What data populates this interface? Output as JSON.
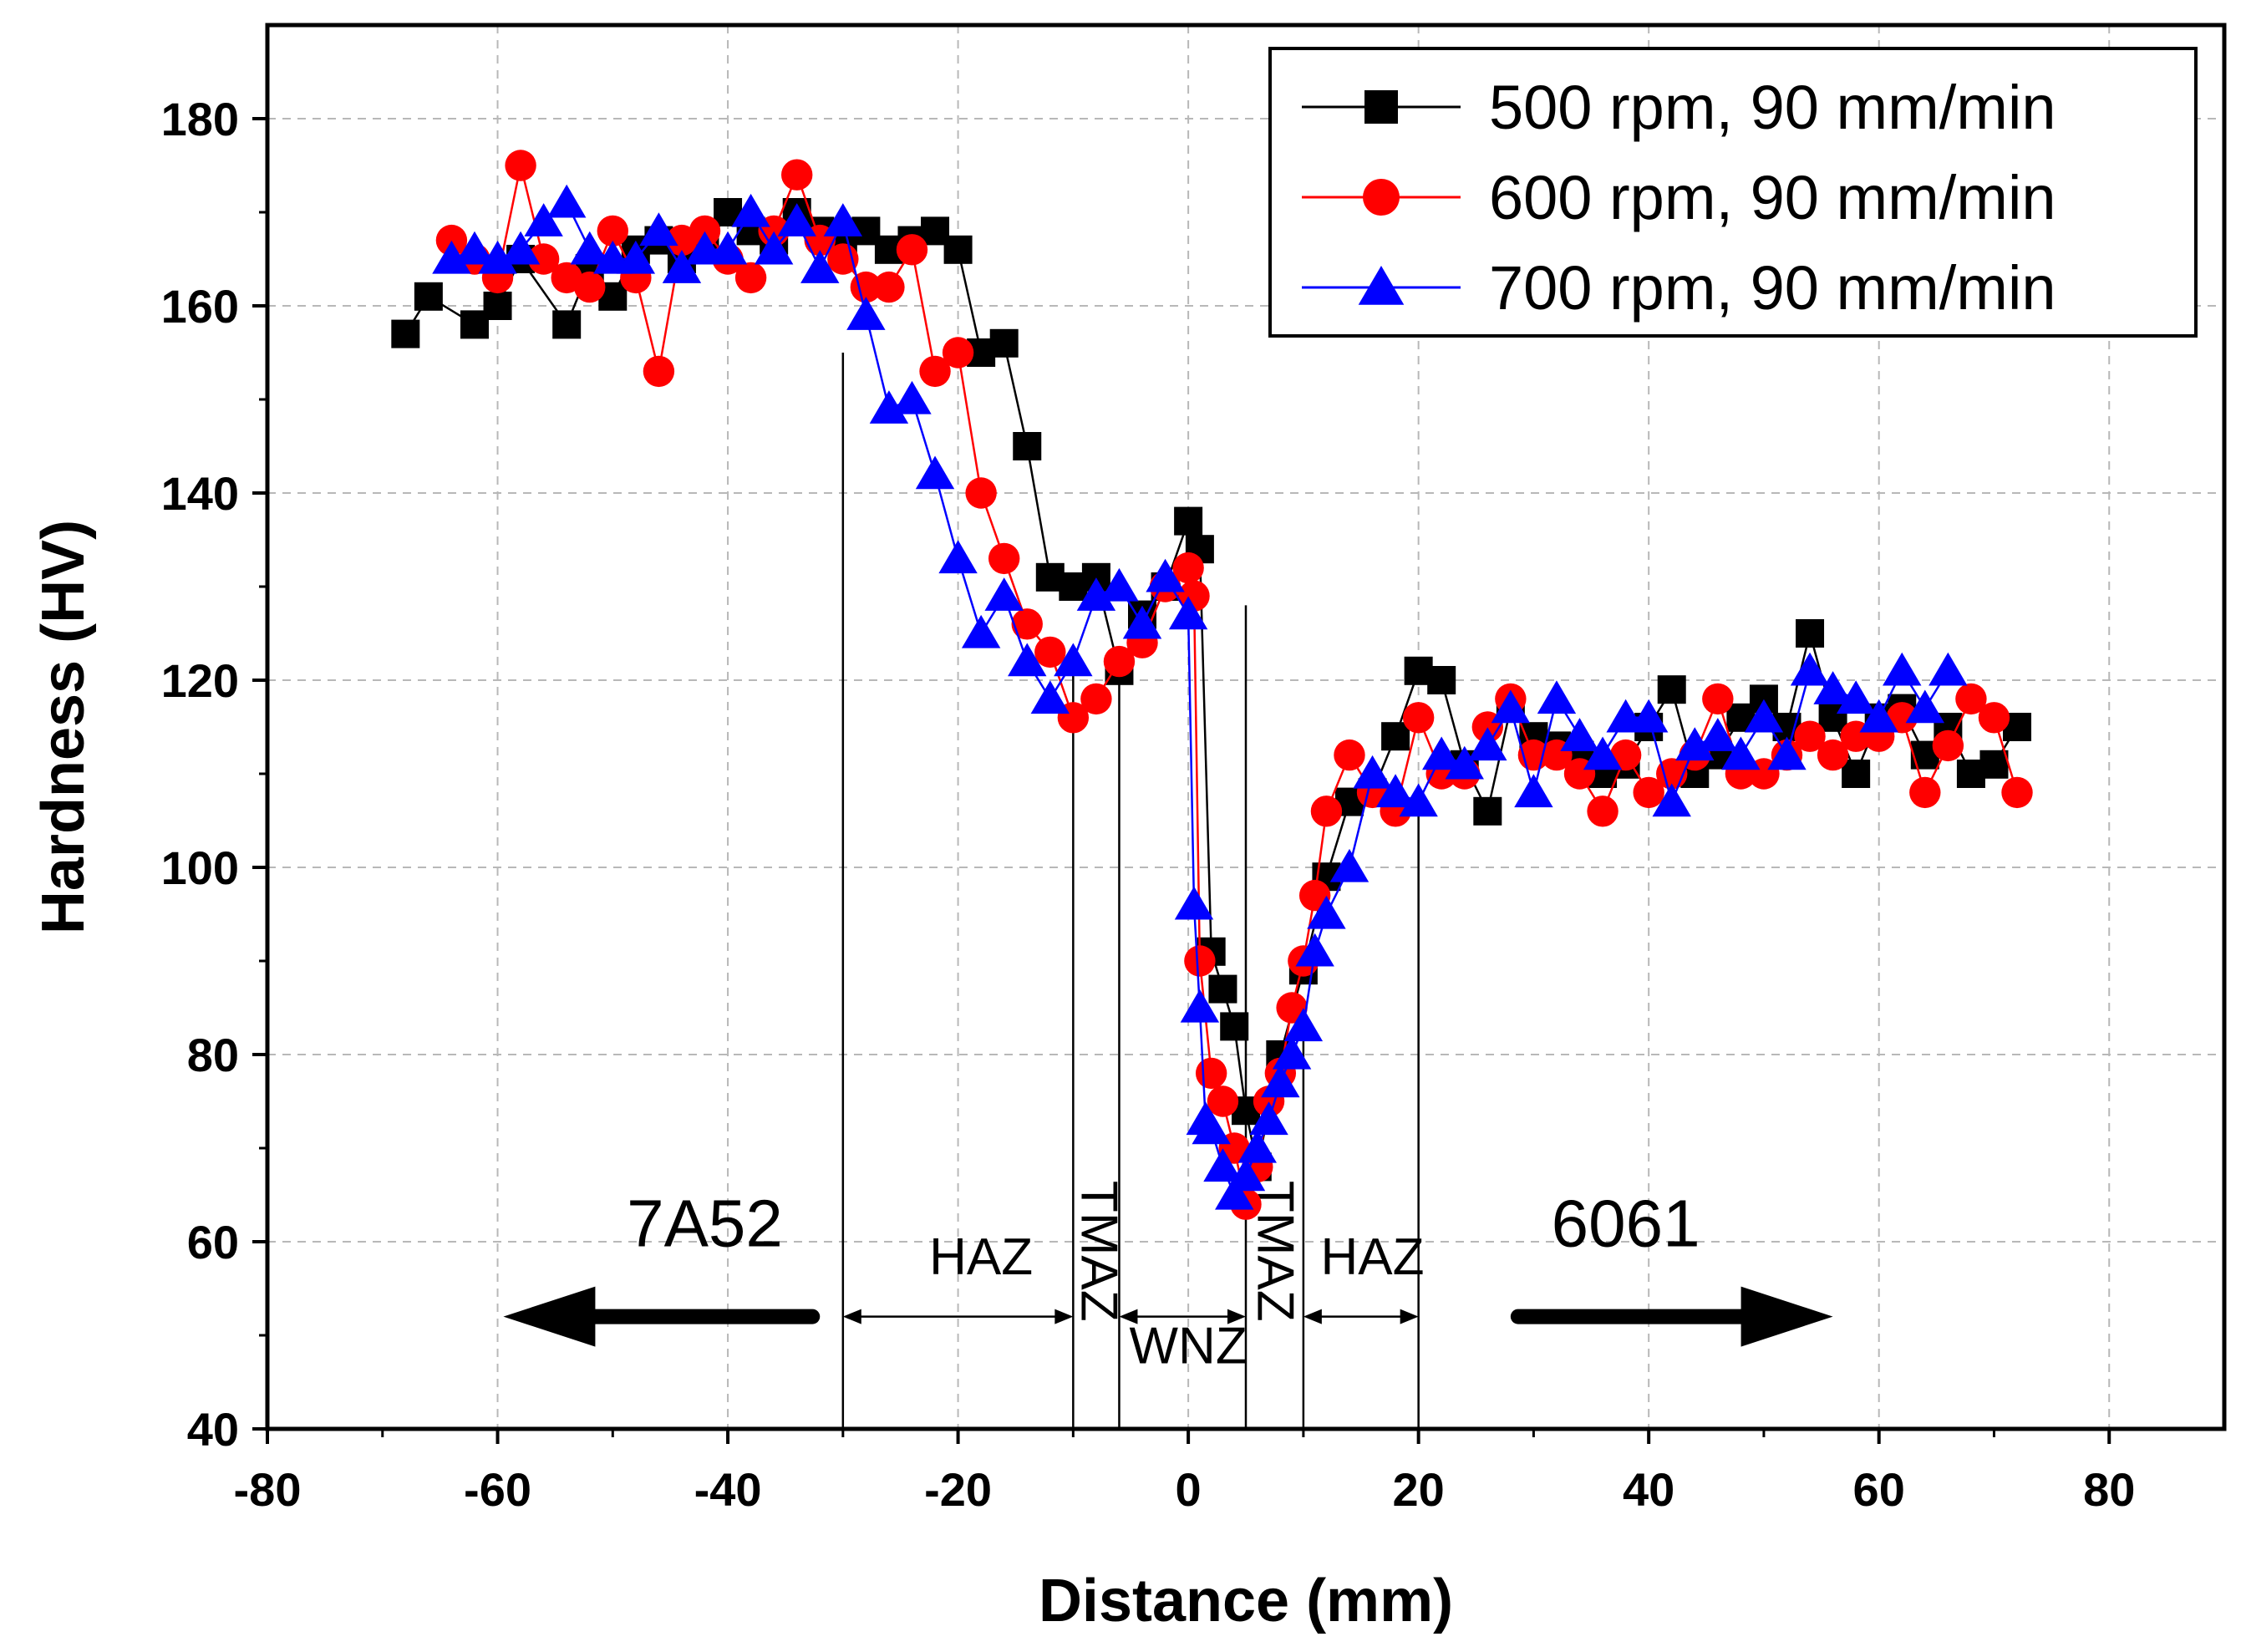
{
  "chart_data": {
    "type": "scatter",
    "title": "",
    "xlabel": "Distance (mm)",
    "ylabel": "Hardness (HV)",
    "xlim": [
      -80,
      90
    ],
    "ylim": [
      40,
      190
    ],
    "x_ticks": [
      -80,
      -60,
      -40,
      -20,
      0,
      20,
      40,
      60,
      80
    ],
    "y_ticks": [
      40,
      60,
      80,
      100,
      120,
      140,
      160,
      180
    ],
    "grid": true,
    "legend_position": "top-right",
    "series": [
      {
        "name": "500 rpm, 90 mm/min",
        "color": "#000000",
        "marker": "square",
        "x": [
          -68,
          -66,
          -62,
          -60,
          -58,
          -54,
          -52,
          -50,
          -48,
          -46,
          -44,
          -42,
          -40,
          -38,
          -36,
          -34,
          -32,
          -30,
          -28,
          -26,
          -24,
          -22,
          -20,
          -18,
          -16,
          -14,
          -12,
          -10,
          -8,
          -6,
          -4,
          -2,
          0,
          1,
          2,
          3,
          4,
          5,
          6,
          8,
          10,
          12,
          14,
          16,
          18,
          20,
          22,
          24,
          26,
          28,
          30,
          32,
          34,
          36,
          38,
          40,
          42,
          44,
          46,
          48,
          50,
          52,
          54,
          56,
          58,
          60,
          62,
          64,
          66,
          68,
          70,
          72
        ],
        "y": [
          157,
          161,
          158,
          160,
          165,
          158,
          164,
          161,
          166,
          167,
          165,
          166,
          170,
          168,
          167,
          170,
          168,
          166,
          168,
          166,
          167,
          168,
          166,
          155,
          156,
          145,
          131,
          130,
          131,
          121,
          127,
          130,
          137,
          134,
          91,
          87,
          83,
          74,
          68,
          80,
          89,
          99,
          107,
          108,
          114,
          121,
          120,
          111,
          106,
          117,
          114,
          113,
          112,
          110,
          111,
          115,
          119,
          110,
          112,
          116,
          118,
          115,
          125,
          116,
          110,
          116,
          117,
          112,
          115,
          110,
          111,
          115
        ]
      },
      {
        "name": "600 rpm, 90 mm/min",
        "color": "#ff0000",
        "marker": "circle",
        "x": [
          -64,
          -62,
          -60,
          -58,
          -56,
          -54,
          -52,
          -50,
          -48,
          -46,
          -44,
          -42,
          -40,
          -38,
          -36,
          -34,
          -32,
          -30,
          -28,
          -26,
          -24,
          -22,
          -20,
          -18,
          -16,
          -14,
          -12,
          -10,
          -8,
          -6,
          -4,
          -2,
          0,
          0.5,
          1,
          2,
          3,
          4,
          5,
          6,
          7,
          8,
          9,
          10,
          11,
          12,
          14,
          16,
          18,
          20,
          22,
          24,
          26,
          28,
          30,
          32,
          34,
          36,
          38,
          40,
          42,
          44,
          46,
          48,
          50,
          52,
          54,
          56,
          58,
          60,
          62,
          64,
          66,
          68,
          70,
          72
        ],
        "y": [
          167,
          165,
          163,
          175,
          165,
          163,
          162,
          168,
          163,
          153,
          167,
          168,
          165,
          163,
          168,
          174,
          167,
          165,
          162,
          162,
          166,
          153,
          155,
          140,
          133,
          126,
          123,
          116,
          118,
          122,
          124,
          130,
          132,
          129,
          90,
          78,
          75,
          70,
          64,
          68,
          75,
          78,
          85,
          90,
          97,
          106,
          112,
          108,
          106,
          116,
          110,
          110,
          115,
          118,
          112,
          112,
          110,
          106,
          112,
          108,
          110,
          112,
          118,
          110,
          110,
          112,
          114,
          112,
          114,
          114,
          116,
          108,
          113,
          118,
          116,
          108
        ]
      },
      {
        "name": "700 rpm, 90 mm/min",
        "color": "#0000ff",
        "marker": "triangle",
        "x": [
          -64,
          -62,
          -60,
          -58,
          -56,
          -54,
          -52,
          -50,
          -48,
          -46,
          -44,
          -42,
          -40,
          -38,
          -36,
          -34,
          -32,
          -30,
          -28,
          -26,
          -24,
          -22,
          -20,
          -18,
          -16,
          -14,
          -12,
          -10,
          -8,
          -6,
          -4,
          -2,
          0,
          0.5,
          1,
          1.5,
          2,
          3,
          4,
          5,
          6,
          7,
          8,
          9,
          10,
          11,
          12,
          14,
          16,
          18,
          20,
          22,
          24,
          26,
          28,
          30,
          32,
          34,
          36,
          38,
          40,
          42,
          44,
          46,
          48,
          50,
          52,
          54,
          56,
          58,
          60,
          62,
          64,
          66
        ],
        "y": [
          165,
          166,
          165,
          166,
          169,
          171,
          166,
          165,
          165,
          168,
          164,
          166,
          166,
          170,
          166,
          169,
          164,
          169,
          159,
          149,
          150,
          142,
          133,
          125,
          129,
          122,
          118,
          122,
          129,
          130,
          126,
          131,
          127,
          96,
          85,
          73,
          72,
          68,
          65,
          67,
          70,
          73,
          77,
          80,
          83,
          91,
          95,
          100,
          110,
          108,
          107,
          112,
          111,
          113,
          117,
          108,
          118,
          114,
          112,
          116,
          116,
          107,
          113,
          114,
          112,
          116,
          112,
          121,
          119,
          118,
          116,
          121,
          117,
          121
        ]
      }
    ],
    "annotations": {
      "material_left": "7A52",
      "material_right": "6061",
      "zone_haz_left": "HAZ",
      "zone_tmaz_left": "TMAZ",
      "zone_wnz": "WNZ",
      "zone_tmaz_right": "TMAZ",
      "zone_haz_right": "HAZ",
      "zone_boundaries_mm": [
        -30,
        -10,
        -6,
        5,
        10,
        20
      ]
    }
  }
}
